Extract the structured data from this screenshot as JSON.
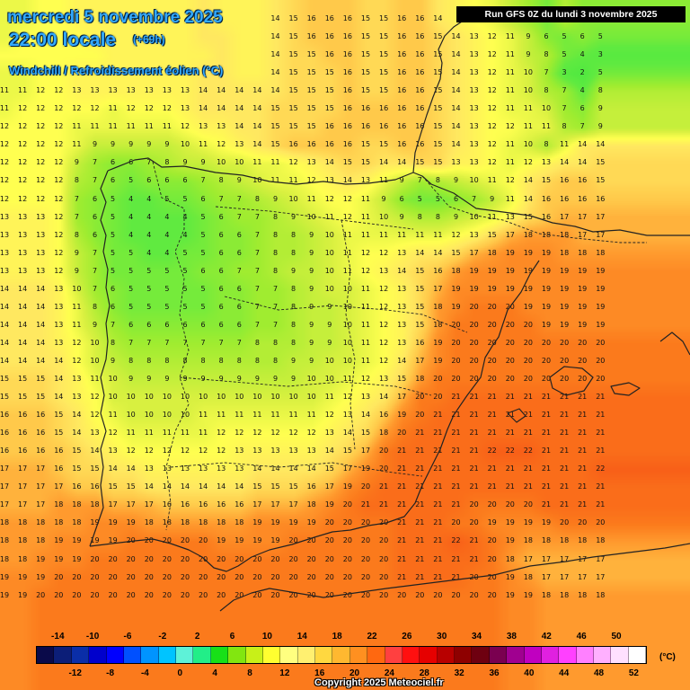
{
  "header": {
    "date": "mercredi 5 novembre 2025",
    "time": "22:00 locale",
    "offset": "(+69h)",
    "variable": "Windchill / Refroidissement éolien (°C)"
  },
  "run_info": "Run GFS 0Z du lundi 3 novembre 2025",
  "copyright": "Copyright 2025 Meteociel.fr",
  "legend": {
    "unit": "(°C)",
    "top_labels": [
      "-14",
      "-10",
      "-6",
      "-2",
      "2",
      "6",
      "10",
      "14",
      "18",
      "22",
      "26",
      "30",
      "34",
      "38",
      "42",
      "46",
      "50"
    ],
    "bottom_labels": [
      "-12",
      "-8",
      "-4",
      "0",
      "4",
      "8",
      "12",
      "16",
      "20",
      "24",
      "28",
      "32",
      "36",
      "40",
      "44",
      "48",
      "52"
    ],
    "colors": [
      "#0a0a4a",
      "#0c1e78",
      "#0a2ea8",
      "#0000cc",
      "#0000ff",
      "#0050ff",
      "#0094ff",
      "#00c4ff",
      "#5ef2d8",
      "#22ee88",
      "#18e018",
      "#82e610",
      "#c8f018",
      "#ffff30",
      "#ffff80",
      "#fff070",
      "#ffd840",
      "#ffb830",
      "#ff9020",
      "#ff6810",
      "#ff4040",
      "#ff1010",
      "#e60000",
      "#b80000",
      "#8e0000",
      "#6e0010",
      "#7a0050",
      "#a00090",
      "#c000c0",
      "#e020e0",
      "#ff40ff",
      "#ff80ff",
      "#ffb0ff",
      "#ffe0ff",
      "#ffffff"
    ]
  },
  "map": {
    "color_scale_breakpoints": [
      [
        0,
        "#40e840"
      ],
      [
        4,
        "#60ea40"
      ],
      [
        7,
        "#a0ec30"
      ],
      [
        10,
        "#d8f040"
      ],
      [
        12,
        "#ffff50"
      ],
      [
        14,
        "#ffe860"
      ],
      [
        16,
        "#ffc94a"
      ],
      [
        18,
        "#ff9a2e"
      ],
      [
        20,
        "#fb7a1c"
      ],
      [
        22,
        "#f86018"
      ]
    ],
    "grid_rows": [
      "11 11 12 12 13 13 13 13 13 13 13 14 13 13 13 14 15 16 16 16 15 15 16 16 14 13 12 11 9 7 5 8 6 6",
      "11 12 12 12 12 13 13 13 13 13 13 14 14 13 13 14 15 16 16 16 15 15 16 16 15 14 13 12 11 9 6 5 6 5",
      "12 12 12 12 12 12 13 13 13 13 13 13 14 13 13 14 15 15 16 16 15 15 16 16 15 14 13 12 11 9 8 5 4 3",
      "11 11 12 12 13 13 13 13 13 13 13 14 14 13 13 14 15 15 15 16 15 15 16 16 15 14 13 12 11 10 7 3 2 5",
      "11 11 12 12 13 13 13 13 13 13 13 14 14 14 14 14 15 15 15 16 15 15 16 16 15 14 13 12 11 10 8 7 4 8",
      "11 12 12 12 12 12 11 12 12 12 13 14 14 14 14 15 15 15 15 16 16 16 16 16 15 14 13 12 11 11 10 7 6 9",
      "12 12 12 12 11 11 11 11 11 11 12 13 13 14 14 15 15 15 16 16 16 16 16 16 15 14 13 12 12 11 11 8 7 9",
      "12 12 12 12 11 9 9 9 9 9 10 11 12 13 14 15 16 16 16 16 15 15 16 16 15 14 13 12 11 10 8 11 14 14",
      "12 12 12 12 9 7 6 6 7 8 9 9 10 10 11 11 12 13 14 15 15 14 14 15 15 13 13 12 11 12 13 14 14 15",
      "12 12 12 12 8 7 6 5 6 6 6 7 8 9 10 11 11 12 13 14 13 11 9 7 8 9 10 11 12 14 15 16 16 15",
      "12 12 12 12 7 6 5 4 4 5 5 6 7 7 8 9 10 11 12 12 11 9 6 5 5 6 7 9 11 14 16 16 16 16",
      "13 13 13 12 7 6 5 4 4 4 4 5 6 7 7 8 9 10 11 12 11 10 9 8 8 9 10 11 13 15 16 17 17 17",
      "13 13 13 12 8 6 5 4 4 4 4 5 6 6 7 8 8 9 10 11 11 11 11 11 11 12 13 15 17 18 18 18 17 17",
      "13 13 13 12 9 7 5 5 4 4 5 5 6 6 7 8 8 9 10 11 12 12 13 14 14 15 17 18 19 19 19 18 18 18",
      "13 13 13 12 9 7 5 5 5 5 5 6 6 7 7 8 9 9 10 11 12 13 14 15 16 18 19 19 19 19 19 19 19 19",
      "14 14 14 13 10 7 6 5 5 5 5 5 6 6 7 7 8 9 10 10 11 12 13 15 17 19 19 19 19 19 19 19 19 19",
      "14 14 14 13 11 8 6 5 5 5 5 5 6 6 7 7 8 9 9 10 11 12 13 15 18 19 20 20 20 19 19 19 19 19",
      "14 14 14 13 11 9 7 6 6 6 6 6 6 6 7 7 8 9 9 10 11 12 13 15 18 20 20 20 20 20 19 19 19 19",
      "14 14 14 13 12 10 8 7 7 7 7 7 7 7 8 8 8 9 9 10 11 12 13 16 19 20 20 20 20 20 20 20 20 20",
      "14 14 14 14 12 10 9 8 8 8 8 8 8 8 8 8 9 9 10 10 11 12 14 17 19 20 20 20 20 20 20 20 20 20",
      "15 15 15 14 13 11 10 9 9 9 9 9 9 9 9 9 9 10 10 11 12 13 15 18 20 20 20 20 20 20 20 20 20 20",
      "15 15 15 14 13 12 10 10 10 10 10 10 10 10 10 10 10 10 11 12 13 14 17 20 20 21 21 21 21 21 21 21 21 21",
      "16 16 16 15 14 12 11 10 10 10 10 11 11 11 11 11 11 11 12 13 14 16 19 20 21 21 21 21 21 21 21 21 21 21",
      "16 16 16 15 14 13 12 11 11 11 11 11 12 12 12 12 12 12 13 14 15 18 20 21 21 21 21 21 21 21 21 21 21 21",
      "16 16 16 16 15 14 13 12 12 12 12 12 12 13 13 13 13 13 14 15 17 20 21 21 21 21 21 22 22 22 21 21 21 21",
      "17 17 17 16 15 15 14 14 13 13 13 13 13 13 14 14 14 14 15 17 19 20 21 21 21 21 21 21 21 21 21 21 21 22",
      "17 17 17 17 16 16 15 15 14 14 14 14 14 14 15 15 15 16 17 19 20 21 21 21 21 21 21 21 21 21 21 21 21 21",
      "17 17 17 18 18 18 17 17 17 16 16 16 16 16 17 17 17 18 19 20 21 21 21 21 21 21 20 20 20 20 21 21 21 21",
      "18 18 18 18 18 19 19 19 18 18 18 18 18 18 19 19 19 19 20 20 20 20 21 21 21 20 20 19 19 19 19 20 20 20",
      "18 18 18 19 19 19 19 20 20 20 20 20 19 19 19 19 20 20 20 20 20 20 21 21 21 22 21 20 19 18 18 18 18 18",
      "18 18 19 19 19 20 20 20 20 20 20 20 20 20 20 20 20 20 20 20 20 20 21 21 21 21 21 20 18 17 17 17 17 17",
      "19 19 19 20 20 20 20 20 20 20 20 20 20 20 20 20 20 20 20 20 20 20 21 21 21 21 20 20 19 18 17 17 17 17",
      "19 19 20 20 20 20 20 20 20 20 20 20 20 20 20 20 20 20 20 20 20 20 20 20 20 20 20 20 19 19 18 18 18 18"
    ]
  }
}
